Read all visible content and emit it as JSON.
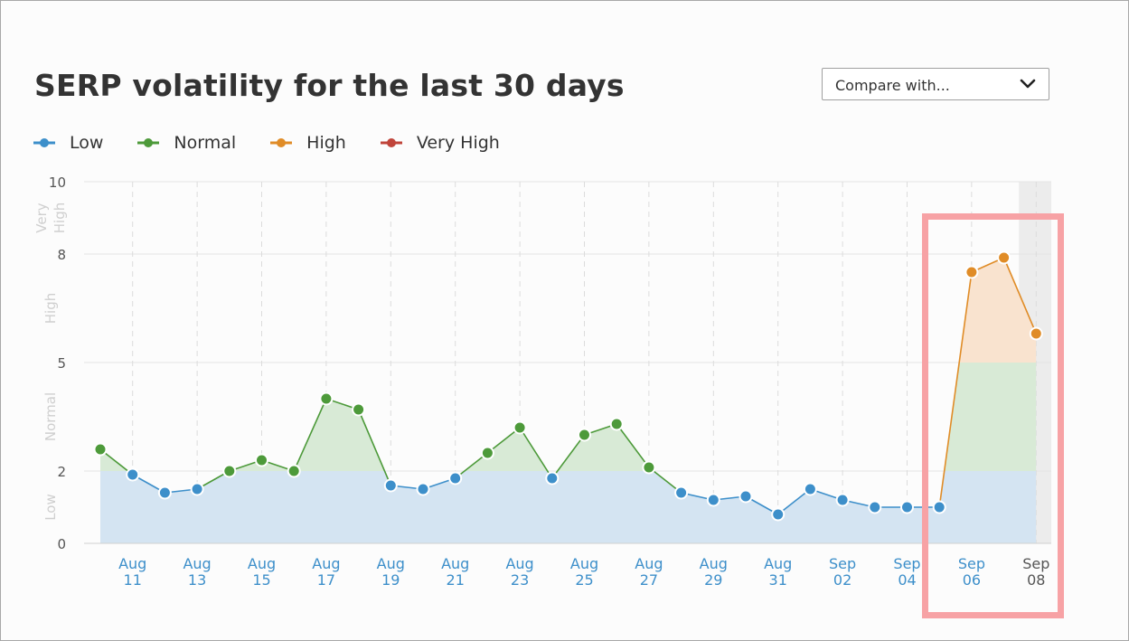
{
  "title": "SERP volatility for the last 30 days",
  "compare": {
    "label": "Compare with...",
    "icon": "chevron-down-icon"
  },
  "legend": [
    {
      "label": "Low",
      "color": "#3d8fca"
    },
    {
      "label": "Normal",
      "color": "#4d9a3a"
    },
    {
      "label": "High",
      "color": "#e08c27"
    },
    {
      "label": "Very High",
      "color": "#c0443a"
    }
  ],
  "chart_data": {
    "type": "area",
    "ylim": [
      0,
      10
    ],
    "y_ticks": [
      "0",
      "2",
      "5",
      "8",
      "10"
    ],
    "y_zones": [
      {
        "label": "Low",
        "from": 0,
        "to": 2
      },
      {
        "label": "Normal",
        "from": 2,
        "to": 5
      },
      {
        "label": "High",
        "from": 5,
        "to": 8
      },
      {
        "label": "Very High",
        "from": 8,
        "to": 10
      }
    ],
    "x_tick_labels": [
      [
        "Aug",
        "11"
      ],
      [
        "Aug",
        "13"
      ],
      [
        "Aug",
        "15"
      ],
      [
        "Aug",
        "17"
      ],
      [
        "Aug",
        "19"
      ],
      [
        "Aug",
        "21"
      ],
      [
        "Aug",
        "23"
      ],
      [
        "Aug",
        "25"
      ],
      [
        "Aug",
        "27"
      ],
      [
        "Aug",
        "29"
      ],
      [
        "Aug",
        "31"
      ],
      [
        "Sep",
        "02"
      ],
      [
        "Sep",
        "04"
      ],
      [
        "Sep",
        "06"
      ],
      [
        "Sep",
        "08"
      ]
    ],
    "dates": [
      "Aug 10",
      "Aug 11",
      "Aug 12",
      "Aug 13",
      "Aug 14",
      "Aug 15",
      "Aug 16",
      "Aug 17",
      "Aug 18",
      "Aug 19",
      "Aug 20",
      "Aug 21",
      "Aug 22",
      "Aug 23",
      "Aug 24",
      "Aug 25",
      "Aug 26",
      "Aug 27",
      "Aug 28",
      "Aug 29",
      "Aug 30",
      "Aug 31",
      "Sep 01",
      "Sep 02",
      "Sep 03",
      "Sep 04",
      "Sep 05",
      "Sep 06",
      "Sep 07",
      "Sep 08"
    ],
    "values": [
      2.6,
      1.9,
      1.4,
      1.5,
      2.0,
      2.3,
      2.0,
      4.0,
      3.7,
      1.6,
      1.5,
      1.8,
      2.5,
      3.2,
      1.8,
      3.0,
      3.3,
      2.1,
      1.4,
      1.2,
      1.3,
      0.8,
      1.5,
      1.2,
      1.0,
      1.0,
      1.0,
      7.5,
      7.9,
      5.8
    ],
    "grid": "horizontal lines at ticks, vertical dashed lines at labeled dates",
    "highlight_region": [
      "Sep 05",
      "Sep 08"
    ]
  }
}
